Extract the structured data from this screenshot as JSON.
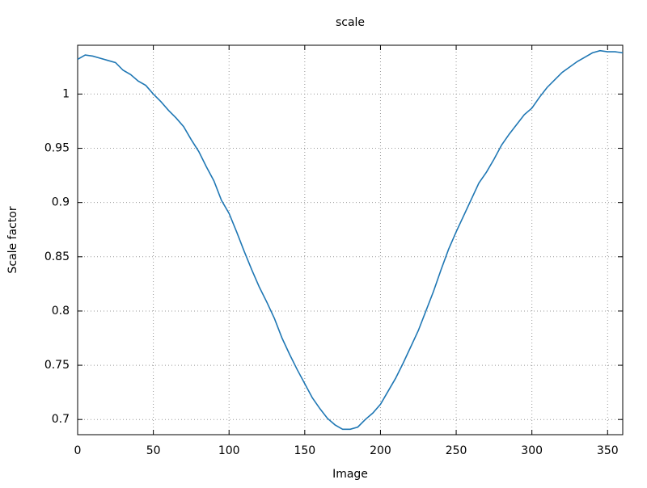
{
  "chart_data": {
    "type": "line",
    "title": "scale",
    "x_label": "Image",
    "y_label": "Scale factor",
    "x": [
      0,
      5,
      10,
      15,
      20,
      25,
      30,
      35,
      40,
      45,
      50,
      55,
      60,
      65,
      70,
      75,
      80,
      85,
      90,
      95,
      100,
      105,
      110,
      115,
      120,
      125,
      130,
      135,
      140,
      145,
      150,
      155,
      160,
      165,
      170,
      175,
      180,
      185,
      190,
      195,
      200,
      205,
      210,
      215,
      220,
      225,
      230,
      235,
      240,
      245,
      250,
      255,
      260,
      265,
      270,
      275,
      280,
      285,
      290,
      295,
      300,
      305,
      310,
      315,
      320,
      325,
      330,
      335,
      340,
      345,
      350,
      355,
      360
    ],
    "values": [
      1.032,
      1.036,
      1.035,
      1.033,
      1.031,
      1.029,
      1.022,
      1.018,
      1.012,
      1.008,
      1.0,
      0.993,
      0.985,
      0.978,
      0.97,
      0.958,
      0.947,
      0.933,
      0.92,
      0.902,
      0.89,
      0.873,
      0.855,
      0.838,
      0.822,
      0.808,
      0.793,
      0.775,
      0.76,
      0.746,
      0.733,
      0.72,
      0.71,
      0.701,
      0.695,
      0.691,
      0.691,
      0.693,
      0.7,
      0.706,
      0.714,
      0.726,
      0.738,
      0.752,
      0.767,
      0.782,
      0.8,
      0.818,
      0.838,
      0.857,
      0.873,
      0.888,
      0.903,
      0.918,
      0.928,
      0.94,
      0.953,
      0.963,
      0.972,
      0.981,
      0.987,
      0.997,
      1.006,
      1.013,
      1.02,
      1.025,
      1.03,
      1.034,
      1.038,
      1.04,
      1.039,
      1.039,
      1.038
    ],
    "color": "#1f77b4",
    "xlim": [
      0,
      360
    ],
    "xticks": [
      0,
      50,
      100,
      150,
      200,
      250,
      300,
      350
    ],
    "ylim": [
      0.686,
      1.045
    ],
    "yticks": [
      0.7,
      0.75,
      0.8,
      0.85,
      0.9,
      0.95,
      1
    ],
    "grid": true
  }
}
